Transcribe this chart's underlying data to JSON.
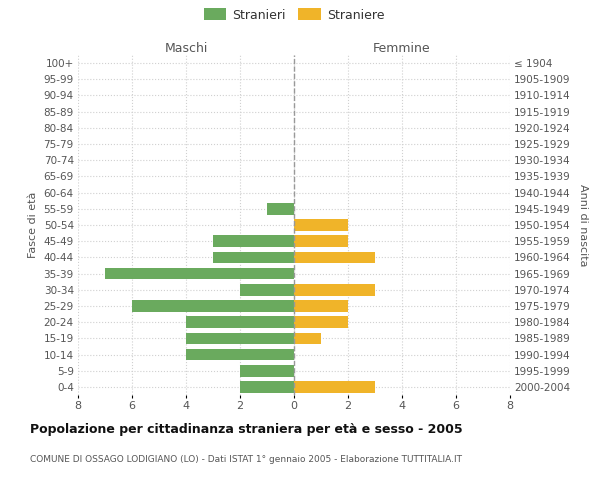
{
  "age_groups": [
    "100+",
    "95-99",
    "90-94",
    "85-89",
    "80-84",
    "75-79",
    "70-74",
    "65-69",
    "60-64",
    "55-59",
    "50-54",
    "45-49",
    "40-44",
    "35-39",
    "30-34",
    "25-29",
    "20-24",
    "15-19",
    "10-14",
    "5-9",
    "0-4"
  ],
  "birth_years": [
    "≤ 1904",
    "1905-1909",
    "1910-1914",
    "1915-1919",
    "1920-1924",
    "1925-1929",
    "1930-1934",
    "1935-1939",
    "1940-1944",
    "1945-1949",
    "1950-1954",
    "1955-1959",
    "1960-1964",
    "1965-1969",
    "1970-1974",
    "1975-1979",
    "1980-1984",
    "1985-1989",
    "1990-1994",
    "1995-1999",
    "2000-2004"
  ],
  "maschi": [
    0,
    0,
    0,
    0,
    0,
    0,
    0,
    0,
    0,
    1,
    0,
    3,
    3,
    7,
    2,
    6,
    4,
    4,
    4,
    2,
    2
  ],
  "femmine": [
    0,
    0,
    0,
    0,
    0,
    0,
    0,
    0,
    0,
    0,
    2,
    2,
    3,
    0,
    3,
    2,
    2,
    1,
    0,
    0,
    3
  ],
  "color_maschi": "#6aaa5e",
  "color_femmine": "#f0b429",
  "title": "Popolazione per cittadinanza straniera per età e sesso - 2005",
  "subtitle": "COMUNE DI OSSAGO LODIGIANO (LO) - Dati ISTAT 1° gennaio 2005 - Elaborazione TUTTITALIA.IT",
  "label_maschi": "Maschi",
  "label_femmine": "Femmine",
  "ylabel_left": "Fasce di età",
  "ylabel_right": "Anni di nascita",
  "legend_stranieri": "Stranieri",
  "legend_straniere": "Straniere",
  "xlim": 8,
  "grid_color": "#d0d0d0"
}
